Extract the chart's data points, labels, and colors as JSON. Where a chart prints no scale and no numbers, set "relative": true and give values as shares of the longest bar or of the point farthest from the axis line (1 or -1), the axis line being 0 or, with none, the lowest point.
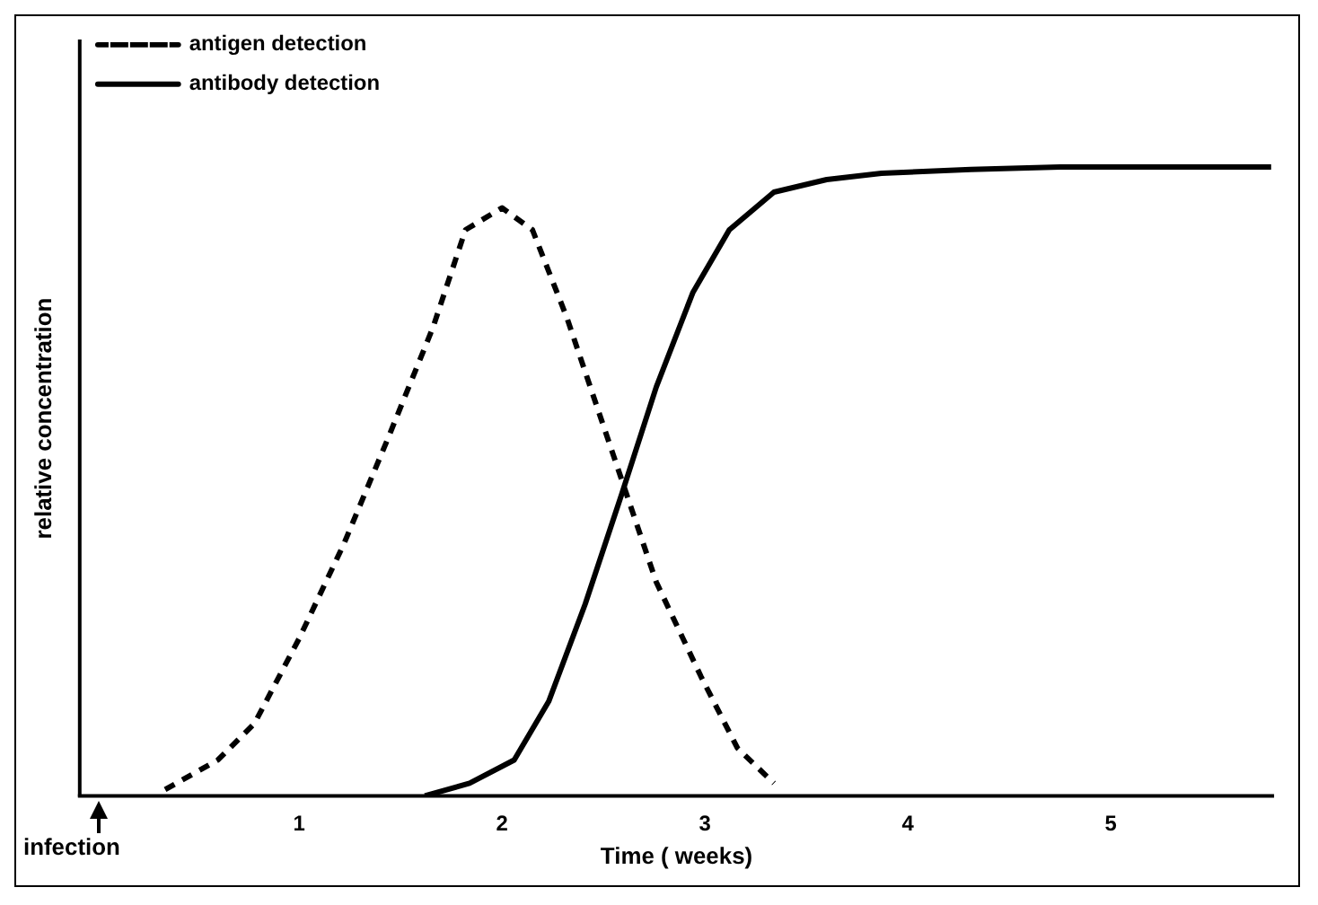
{
  "chart_data": {
    "type": "line",
    "relative": true,
    "xlabel": "Time ( weeks)",
    "ylabel": "relative concentration",
    "xlim": [
      -0.08,
      5.8
    ],
    "xticks": [
      1,
      2,
      3,
      4,
      5
    ],
    "grid": false,
    "legend": "top left",
    "marker": "none",
    "annotations": [
      "infection"
    ],
    "series": [
      {
        "name": "antigen detection",
        "color": "#000000",
        "line_style": "dashed",
        "x": [
          0.34,
          0.6,
          0.78,
          1.0,
          1.22,
          1.44,
          1.66,
          1.82,
          2.0,
          2.15,
          2.32,
          2.54,
          2.76,
          2.98,
          3.16,
          3.34
        ],
        "values": [
          0.01,
          0.057,
          0.115,
          0.25,
          0.4,
          0.57,
          0.745,
          0.9,
          0.935,
          0.9,
          0.76,
          0.55,
          0.34,
          0.19,
          0.076,
          0.02
        ]
      },
      {
        "name": "antibody detection",
        "color": "#000000",
        "line_style": "solid",
        "x": [
          1.62,
          1.84,
          2.06,
          2.23,
          2.41,
          2.59,
          2.76,
          2.94,
          3.12,
          3.34,
          3.6,
          3.87,
          4.31,
          4.75,
          5.79
        ],
        "values": [
          0,
          0.02,
          0.057,
          0.15,
          0.305,
          0.48,
          0.65,
          0.8,
          0.9,
          0.96,
          0.98,
          0.99,
          0.996,
          1,
          1
        ]
      }
    ]
  }
}
